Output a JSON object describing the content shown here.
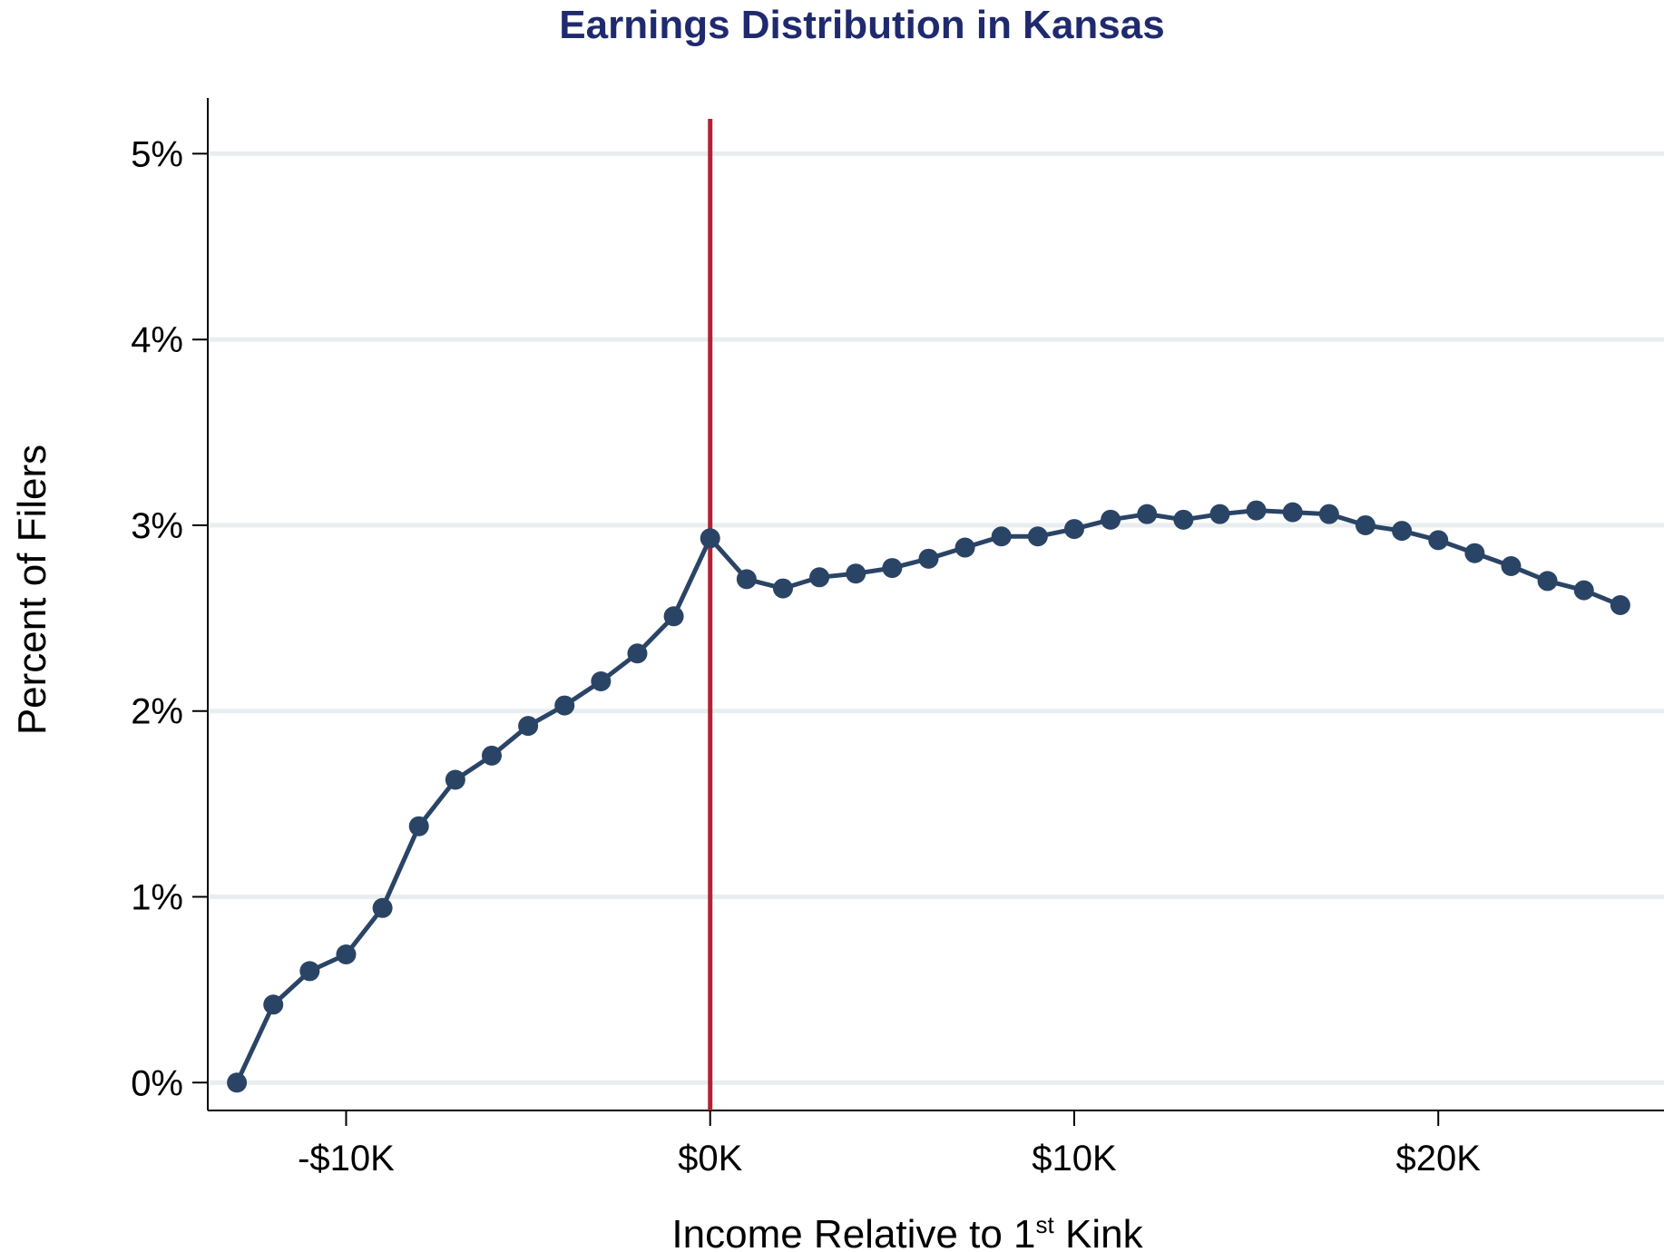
{
  "chart_data": {
    "type": "line",
    "title": "Earnings Distribution in Kansas",
    "xlabel": {
      "prefix": "Income Relative to 1",
      "sup": "st",
      "suffix": " Kink"
    },
    "ylabel": "Percent of Filers",
    "x_unit": "thousand dollars",
    "xlim": [
      -13.8,
      26.2
    ],
    "ylim": [
      -0.15,
      5.3
    ],
    "x_ticks": [
      -10,
      0,
      10,
      20
    ],
    "x_tick_labels": [
      "-$10K",
      "$0K",
      "$10K",
      "$20K"
    ],
    "y_ticks": [
      0,
      1,
      2,
      3,
      4,
      5
    ],
    "y_tick_labels": [
      "0%",
      "1%",
      "2%",
      "3%",
      "4%",
      "5%"
    ],
    "grid": "horizontal",
    "reference_line": {
      "x": 0,
      "color": "#b22333"
    },
    "series_color": "#2a4466",
    "series": [
      {
        "x": [
          -13,
          -12,
          -11,
          -10,
          -9,
          -8,
          -7,
          -6,
          -5,
          -4,
          -3,
          -2,
          -1,
          0,
          1,
          2,
          3,
          4,
          5,
          6,
          7,
          8,
          9,
          10,
          11,
          12,
          13,
          14,
          15,
          16,
          17,
          18,
          19,
          20,
          21,
          22,
          23,
          24,
          25
        ],
        "values": [
          0.0,
          0.42,
          0.6,
          0.69,
          0.94,
          1.38,
          1.63,
          1.76,
          1.92,
          2.03,
          2.16,
          2.31,
          2.51,
          2.93,
          2.71,
          2.66,
          2.72,
          2.74,
          2.77,
          2.82,
          2.88,
          2.94,
          2.94,
          2.98,
          3.03,
          3.06,
          3.03,
          3.06,
          3.08,
          3.07,
          3.06,
          3.0,
          2.97,
          2.92,
          2.85,
          2.78,
          2.7,
          2.65,
          2.57
        ]
      }
    ]
  }
}
